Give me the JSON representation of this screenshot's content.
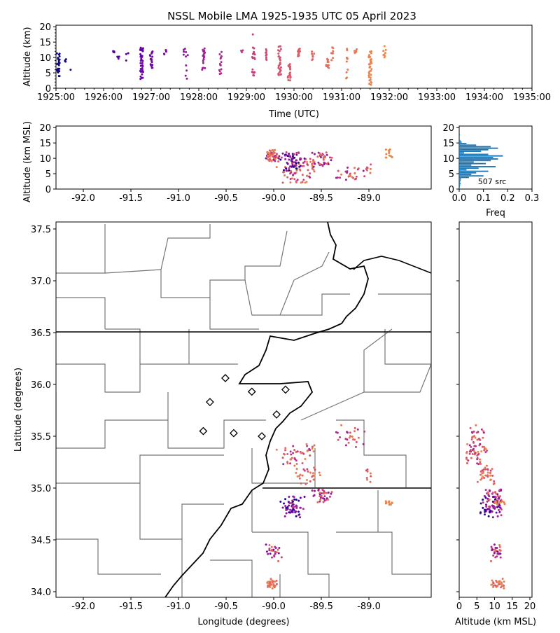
{
  "chart_data": [
    {
      "type": "scatter",
      "name": "time-altitude",
      "title": "NSSL Mobile LMA 1925-1935 UTC 05 April 2023",
      "xlabel": "Time (UTC)",
      "ylabel": "Altitude (km)",
      "xlim_minutes_after_1925": [
        0,
        10
      ],
      "ylim": [
        0,
        20.5
      ],
      "xticks": [
        "1925:00",
        "1926:00",
        "1927:00",
        "1928:00",
        "1929:00",
        "1930:00",
        "1931:00",
        "1932:00",
        "1933:00",
        "1934:00",
        "1935:00"
      ],
      "yticks": [
        "0",
        "5",
        "10",
        "15",
        "20"
      ],
      "clusters": [
        [
          0.05,
          3.5,
          12,
          25
        ],
        [
          0.2,
          8.5,
          9.5,
          6
        ],
        [
          0.3,
          6,
          6,
          1
        ],
        [
          1.2,
          11,
          12.5,
          4
        ],
        [
          1.3,
          8.5,
          13,
          4
        ],
        [
          1.5,
          7,
          12,
          3
        ],
        [
          1.8,
          3,
          13.5,
          40
        ],
        [
          2.0,
          6.5,
          12,
          20
        ],
        [
          2.3,
          11,
          12.5,
          6
        ],
        [
          2.7,
          10.5,
          13.5,
          5
        ],
        [
          2.75,
          2,
          11,
          6
        ],
        [
          3.1,
          6,
          13,
          18
        ],
        [
          3.45,
          4,
          12,
          15
        ],
        [
          3.9,
          11.5,
          12.5,
          3
        ],
        [
          4.15,
          4,
          14,
          18
        ],
        [
          4.15,
          17.5,
          17.5,
          1
        ],
        [
          4.4,
          9,
          13,
          10
        ],
        [
          4.7,
          4,
          14,
          30
        ],
        [
          4.9,
          2.5,
          8,
          25
        ],
        [
          5.1,
          10,
          13.5,
          15
        ],
        [
          5.4,
          9,
          12.5,
          8
        ],
        [
          5.7,
          6.5,
          10,
          12
        ],
        [
          5.8,
          9,
          13.5,
          8
        ],
        [
          6.1,
          3,
          13,
          10
        ],
        [
          6.3,
          11,
          13,
          8
        ],
        [
          6.6,
          1,
          12,
          35
        ],
        [
          6.9,
          10,
          14.5,
          8
        ]
      ]
    },
    {
      "type": "scatter",
      "name": "longitude-altitude",
      "xlabel": "",
      "ylabel": "Altitude (km MSL)",
      "xlim": [
        -92.287,
        -88.346
      ],
      "ylim": [
        0,
        20.5
      ],
      "xticks": [
        "-92.0",
        "-91.5",
        "-91.0",
        "-90.5",
        "-90.0",
        "-89.5",
        "-89.0"
      ],
      "xtick_values": [
        -92,
        -91.5,
        -91,
        -90.5,
        -90,
        -89.5,
        -89
      ],
      "yticks": [
        "0",
        "5",
        "10",
        "15",
        "20"
      ]
    },
    {
      "type": "bar",
      "name": "altitude-histogram",
      "xlabel": "Freq",
      "xlim": [
        0,
        0.3
      ],
      "xticks": [
        "0.0",
        "0.1",
        "0.2",
        "0.3"
      ],
      "yticks": [
        "0",
        "5",
        "10",
        "15",
        "20"
      ],
      "annotation": "507 src",
      "bin_km": 0.5,
      "freq": [
        0.002,
        0.003,
        0.004,
        0.006,
        0.004,
        0.006,
        0.008,
        0.04,
        0.1,
        0.05,
        0.07,
        0.12,
        0.03,
        0.08,
        0.15,
        0.05,
        0.11,
        0.06,
        0.13,
        0.16,
        0.14,
        0.18,
        0.12,
        0.02,
        0.09,
        0.12,
        0.16,
        0.13,
        0.07,
        0.03,
        0.01,
        0.005,
        0,
        0,
        0,
        0.003,
        0,
        0,
        0,
        0,
        0
      ]
    },
    {
      "type": "scatter",
      "name": "plan-view",
      "xlabel": "Longitude (degrees)",
      "ylabel": "Latitude (degrees)",
      "xlim": [
        -92.287,
        -88.346
      ],
      "ylim": [
        33.946,
        37.568
      ],
      "xticks": [
        "-92.0",
        "-91.5",
        "-91.0",
        "-90.5",
        "-90.0",
        "-89.5",
        "-89.0"
      ],
      "xtick_values": [
        -92,
        -91.5,
        -91,
        -90.5,
        -90,
        -89.5,
        -89
      ],
      "yticks": [
        "34.0",
        "34.5",
        "35.0",
        "35.5",
        "36.0",
        "36.5",
        "37.0",
        "37.5"
      ],
      "ytick_values": [
        34,
        34.5,
        35,
        35.5,
        36,
        36.5,
        37,
        37.5
      ],
      "stations": [
        [
          -90.508,
          36.061
        ],
        [
          -90.67,
          35.83
        ],
        [
          -90.23,
          35.93
        ],
        [
          -89.876,
          35.95
        ],
        [
          -89.97,
          35.71
        ],
        [
          -90.74,
          35.55
        ],
        [
          -90.42,
          35.53
        ],
        [
          -90.125,
          35.5
        ]
      ],
      "clusters": [
        [
          -89.75,
          35.33,
          0.25,
          0.12,
          45,
          0.5,
          1,
          2,
          8
        ],
        [
          -89.65,
          35.12,
          0.15,
          0.1,
          25,
          0.6,
          1,
          6,
          10
        ],
        [
          -89.8,
          34.82,
          0.15,
          0.12,
          60,
          0,
          0.6,
          6,
          12
        ],
        [
          -89.5,
          34.92,
          0.12,
          0.08,
          35,
          0.3,
          0.9,
          7,
          12
        ],
        [
          -90.0,
          34.38,
          0.1,
          0.1,
          25,
          0.3,
          0.8,
          9,
          12
        ],
        [
          -90.02,
          34.07,
          0.06,
          0.06,
          30,
          0.7,
          1,
          9,
          13
        ],
        [
          -88.79,
          34.86,
          0.05,
          0.03,
          12,
          0.9,
          1,
          10,
          13
        ],
        [
          -89.2,
          35.5,
          0.2,
          0.15,
          25,
          0.4,
          0.9,
          3,
          7
        ],
        [
          -89.0,
          35.15,
          0.1,
          0.1,
          8,
          0.6,
          1,
          4,
          9
        ]
      ]
    },
    {
      "type": "scatter",
      "name": "altitude-latitude",
      "xlabel": "Altitude (km MSL)",
      "xlim": [
        0,
        20.6
      ],
      "xticks": [
        "0",
        "5",
        "10",
        "15",
        "20"
      ]
    }
  ]
}
